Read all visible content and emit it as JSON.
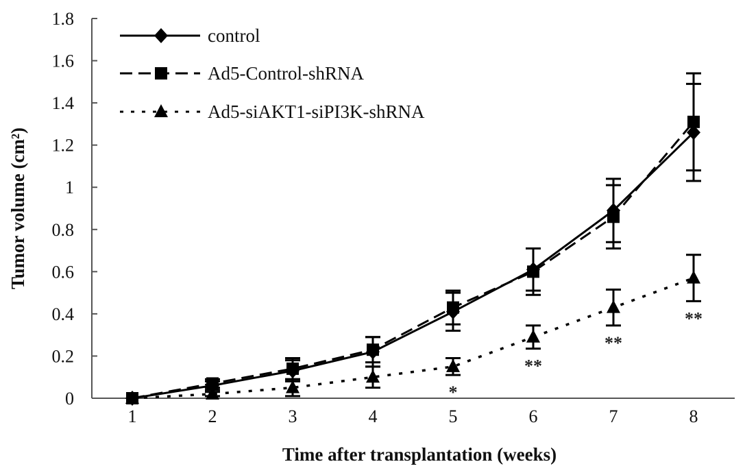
{
  "chart_data": {
    "type": "line",
    "title": "",
    "xlabel": "Time after transplantation (weeks)",
    "ylabel": "Tumor volume (cm²)",
    "x": [
      1,
      2,
      3,
      4,
      5,
      6,
      7,
      8
    ],
    "xticks": [
      "1",
      "2",
      "3",
      "4",
      "5",
      "6",
      "7",
      "8"
    ],
    "yticks": [
      "0",
      "0.2",
      "0.4",
      "0.6",
      "0.8",
      "1",
      "1.2",
      "1.4",
      "1.6",
      "1.8"
    ],
    "ylim": [
      0,
      1.8
    ],
    "xlim": [
      0,
      8.7
    ],
    "grid": false,
    "legend_position": "top-left",
    "series": [
      {
        "name": "control",
        "marker": "diamond",
        "line": "solid",
        "values": [
          0,
          0.06,
          0.13,
          0.22,
          0.41,
          0.61,
          0.89,
          1.26
        ],
        "errors": [
          0,
          0.02,
          0.05,
          0.07,
          0.09,
          0.1,
          0.15,
          0.23
        ]
      },
      {
        "name": "Ad5-Control-shRNA",
        "marker": "square",
        "line": "dashed",
        "values": [
          0,
          0.07,
          0.14,
          0.23,
          0.43,
          0.6,
          0.86,
          1.31
        ],
        "errors": [
          0,
          0.02,
          0.05,
          0.06,
          0.08,
          0.11,
          0.15,
          0.23
        ]
      },
      {
        "name": "Ad5-siAKT1-siPI3K-shRNA",
        "marker": "triangle",
        "line": "dotted",
        "values": [
          0,
          0.02,
          0.05,
          0.1,
          0.15,
          0.29,
          0.43,
          0.57
        ],
        "errors": [
          0,
          0.01,
          0.04,
          0.05,
          0.04,
          0.055,
          0.085,
          0.11
        ]
      }
    ],
    "annotations": [
      {
        "x": 5,
        "text": "*"
      },
      {
        "x": 6,
        "text": "**"
      },
      {
        "x": 7,
        "text": "**"
      },
      {
        "x": 8,
        "text": "**"
      }
    ]
  }
}
